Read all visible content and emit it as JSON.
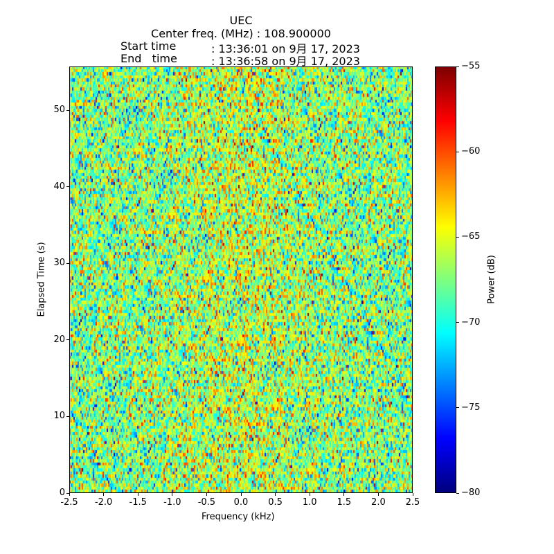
{
  "chart_data": {
    "type": "heatmap",
    "title_lines": [
      "UEC",
      "Center freq. (MHz) : 108.900000"
    ],
    "start_label": "Start time",
    "start_value": ": 13:36:01 on 9月 17, 2023",
    "end_label": "End   time",
    "end_value": ": 13:36:58 on 9月 17, 2023",
    "xlabel": "Frequency (kHz)",
    "ylabel": "Elapsed Time (s)",
    "xlim": [
      -2.5,
      2.5
    ],
    "ylim": [
      0,
      55.7
    ],
    "xticks": [
      "-2.5",
      "-2.0",
      "-1.5",
      "-1.0",
      "-0.5",
      "0.0",
      "0.5",
      "1.0",
      "1.5",
      "2.0",
      "2.5"
    ],
    "xtick_values": [
      -2.5,
      -2.0,
      -1.5,
      -1.0,
      -0.5,
      0.0,
      0.5,
      1.0,
      1.5,
      2.0,
      2.5
    ],
    "yticks": [
      "0",
      "10",
      "20",
      "30",
      "40",
      "50"
    ],
    "ytick_values": [
      0,
      10,
      20,
      30,
      40,
      50
    ],
    "colorbar": {
      "label": "Power (dB)",
      "range": [
        -80,
        -55
      ],
      "ticks": [
        "−80",
        "−75",
        "−70",
        "−65",
        "−60",
        "−55"
      ],
      "tick_values": [
        -80,
        -75,
        -70,
        -65,
        -60,
        -55
      ],
      "colormap": "jet"
    },
    "noise_model": {
      "mean_db": -67.5,
      "std_db": 3.5,
      "center_boost_db": 1.5,
      "freq_bins": 248,
      "time_bins": 140
    }
  }
}
